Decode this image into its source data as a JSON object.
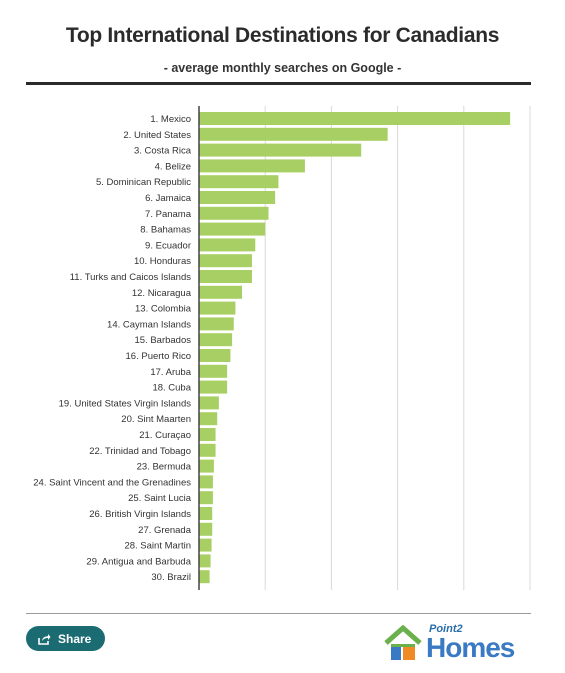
{
  "header": {
    "title": "Top International Destinations for Canadians",
    "subtitle": "- average monthly searches on Google -"
  },
  "chart_data": {
    "type": "bar",
    "orientation": "horizontal",
    "title": "Top International Destinations for Canadians",
    "subtitle": "- average monthly searches on Google -",
    "xlabel": "",
    "ylabel": "",
    "xlim": [
      0,
      100
    ],
    "grid": true,
    "bar_color": "#a8cf64",
    "categories": [
      "1. Mexico",
      "2. United States",
      "3. Costa Rica",
      "4. Belize",
      "5. Dominican Republic",
      "6. Jamaica",
      "7. Panama",
      "8. Bahamas",
      "9. Ecuador",
      "10. Honduras",
      "11. Turks and Caicos Islands",
      "12. Nicaragua",
      "13. Colombia",
      "14. Cayman Islands",
      "15. Barbados",
      "16. Puerto Rico",
      "17. Aruba",
      "18. Cuba",
      "19. United States Virgin Islands",
      "20. Sint Maarten",
      "21. Curaçao",
      "22. Trinidad and Tobago",
      "23. Bermuda",
      "24. Saint Vincent and the Grenadines",
      "25. Saint Lucia",
      "26. British Virgin Islands",
      "27. Grenada",
      "28. Saint Martin",
      "29. Antigua and Barbuda",
      "30. Brazil"
    ],
    "values": [
      94,
      57,
      49,
      32,
      24,
      23,
      21,
      20,
      17,
      16,
      16,
      13,
      11,
      10.5,
      10,
      9.5,
      8.5,
      8.5,
      6,
      5.5,
      5,
      5,
      4.5,
      4.2,
      4.2,
      4,
      4,
      3.8,
      3.5,
      3.2
    ]
  },
  "footer": {
    "share_label": "Share",
    "share_icon": "share-icon",
    "logo_point2": "Point2",
    "logo_homes": "Homes",
    "logo_colors": {
      "blue": "#3a79c4",
      "green": "#6ab04c",
      "orange": "#f08a24",
      "teal": "#1b6b73"
    }
  }
}
